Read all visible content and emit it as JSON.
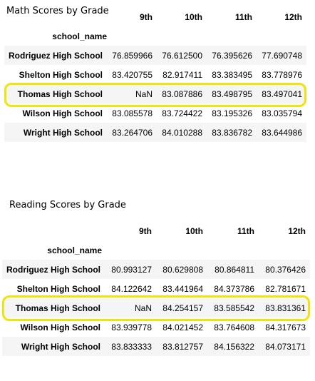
{
  "math": {
    "title": "Math Scores by Grade",
    "index_name": "school_name",
    "columns": [
      "9th",
      "10th",
      "11th",
      "12th"
    ],
    "rows": [
      {
        "school": "Rodriguez High School",
        "values": [
          "76.859966",
          "76.612500",
          "76.395626",
          "77.690748"
        ]
      },
      {
        "school": "Shelton High School",
        "values": [
          "83.420755",
          "82.917411",
          "83.383495",
          "83.778976"
        ]
      },
      {
        "school": "Thomas High School",
        "values": [
          "NaN",
          "83.087886",
          "83.498795",
          "83.497041"
        ]
      },
      {
        "school": "Wilson High School",
        "values": [
          "83.085578",
          "83.724422",
          "83.195326",
          "83.035794"
        ]
      },
      {
        "school": "Wright High School",
        "values": [
          "83.264706",
          "84.010288",
          "83.836782",
          "83.644986"
        ]
      }
    ]
  },
  "reading": {
    "title": "Reading Scores by Grade",
    "index_name": "school_name",
    "columns": [
      "9th",
      "10th",
      "11th",
      "12th"
    ],
    "rows": [
      {
        "school": "Rodriguez High School",
        "values": [
          "80.993127",
          "80.629808",
          "80.864811",
          "80.376426"
        ]
      },
      {
        "school": "Shelton High School",
        "values": [
          "84.122642",
          "83.441964",
          "84.373786",
          "82.781671"
        ]
      },
      {
        "school": "Thomas High School",
        "values": [
          "NaN",
          "84.254157",
          "83.585542",
          "83.831361"
        ]
      },
      {
        "school": "Wilson High School",
        "values": [
          "83.939778",
          "84.021452",
          "83.764608",
          "84.317673"
        ]
      },
      {
        "school": "Wright High School",
        "values": [
          "83.833333",
          "83.812757",
          "84.156322",
          "84.073171"
        ]
      }
    ]
  },
  "highlight_color": "#f0e40f"
}
